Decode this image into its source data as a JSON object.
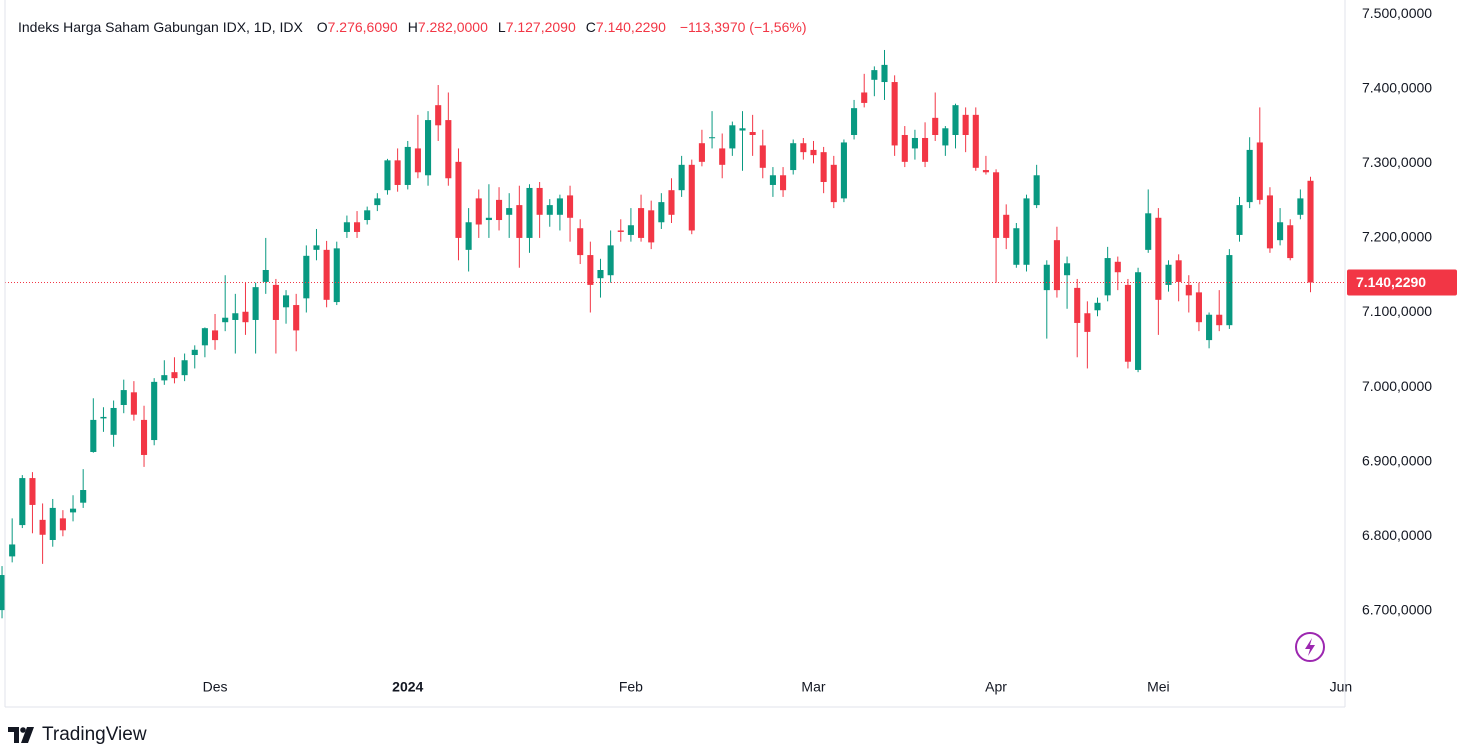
{
  "chart_data": {
    "type": "candlestick",
    "legend": {
      "name": "Indeks Harga Saham Gabungan IDX, 1D, IDX",
      "items": [
        {
          "key": "O",
          "value": "7.276,6090"
        },
        {
          "key": "H",
          "value": "7.282,0000"
        },
        {
          "key": "L",
          "value": "7.127,2090"
        },
        {
          "key": "C",
          "value": "7.140,2290"
        }
      ],
      "change": "−113,3970 (−1,56%)"
    },
    "up_color": "#089981",
    "down_color": "#f23645",
    "grid": true,
    "xlim": [
      -0.2,
      132.4
    ],
    "ylim": [
      6618,
      7519
    ],
    "xticks": [
      {
        "value": 21,
        "label": "Des"
      },
      {
        "value": 40,
        "label": "2024"
      },
      {
        "value": 62,
        "label": "Feb"
      },
      {
        "value": 80,
        "label": "Mar"
      },
      {
        "value": 98,
        "label": "Apr"
      },
      {
        "value": 114,
        "label": "Mei"
      },
      {
        "value": 132,
        "label": "Jun"
      }
    ],
    "yticks": [
      {
        "value": 6700,
        "label": "6.700,0000"
      },
      {
        "value": 6800,
        "label": "6.800,0000"
      },
      {
        "value": 6900,
        "label": "6.900,0000"
      },
      {
        "value": 7000,
        "label": "7.000,0000"
      },
      {
        "value": 7100,
        "label": "7.100,0000"
      },
      {
        "value": 7200,
        "label": "7.200,0000"
      },
      {
        "value": 7300,
        "label": "7.300,0000"
      },
      {
        "value": 7400,
        "label": "7.400,0000"
      },
      {
        "value": 7500,
        "label": "7.500,0000"
      }
    ],
    "price_line": {
      "value": 7140.229,
      "label": "7.140,2290"
    },
    "ohlc": [
      [
        6701,
        6760,
        6690,
        6748
      ],
      [
        6773,
        6824,
        6765,
        6789
      ],
      [
        6815,
        6882,
        6811,
        6878
      ],
      [
        6878,
        6886,
        6804,
        6842
      ],
      [
        6822,
        6844,
        6763,
        6802
      ],
      [
        6795,
        6850,
        6786,
        6838
      ],
      [
        6824,
        6835,
        6800,
        6808
      ],
      [
        6832,
        6855,
        6820,
        6837
      ],
      [
        6845,
        6890,
        6838,
        6862
      ],
      [
        6913,
        6985,
        6912,
        6956
      ],
      [
        6958,
        6973,
        6940,
        6960
      ],
      [
        6936,
        6982,
        6920,
        6972
      ],
      [
        6976,
        7010,
        6965,
        6996
      ],
      [
        6993,
        7008,
        6955,
        6963
      ],
      [
        6956,
        6975,
        6893,
        6909
      ],
      [
        6929,
        7012,
        6922,
        7007
      ],
      [
        7009,
        7036,
        7003,
        7016
      ],
      [
        7020,
        7040,
        7005,
        7012
      ],
      [
        7016,
        7045,
        7008,
        7036
      ],
      [
        7043,
        7056,
        7025,
        7050
      ],
      [
        7056,
        7080,
        7040,
        7079
      ],
      [
        7076,
        7098,
        7050,
        7063
      ],
      [
        7087,
        7150,
        7075,
        7093
      ],
      [
        7090,
        7125,
        7045,
        7099
      ],
      [
        7101,
        7140,
        7070,
        7087
      ],
      [
        7090,
        7140,
        7045,
        7134
      ],
      [
        7141,
        7200,
        7125,
        7157
      ],
      [
        7137,
        7145,
        7045,
        7090
      ],
      [
        7107,
        7130,
        7085,
        7123
      ],
      [
        7110,
        7125,
        7048,
        7076
      ],
      [
        7119,
        7190,
        7100,
        7176
      ],
      [
        7184,
        7212,
        7170,
        7190
      ],
      [
        7184,
        7196,
        7107,
        7117
      ],
      [
        7114,
        7195,
        7110,
        7186
      ],
      [
        7208,
        7230,
        7200,
        7221
      ],
      [
        7221,
        7236,
        7200,
        7208
      ],
      [
        7224,
        7242,
        7218,
        7237
      ],
      [
        7244,
        7260,
        7236,
        7253
      ],
      [
        7264,
        7306,
        7258,
        7304
      ],
      [
        7304,
        7320,
        7262,
        7271
      ],
      [
        7271,
        7330,
        7265,
        7322
      ],
      [
        7320,
        7365,
        7280,
        7288
      ],
      [
        7284,
        7370,
        7270,
        7358
      ],
      [
        7378,
        7405,
        7330,
        7351
      ],
      [
        7358,
        7395,
        7270,
        7280
      ],
      [
        7302,
        7320,
        7170,
        7200
      ],
      [
        7184,
        7240,
        7155,
        7221
      ],
      [
        7253,
        7265,
        7200,
        7218
      ],
      [
        7224,
        7272,
        7200,
        7227
      ],
      [
        7251,
        7268,
        7210,
        7224
      ],
      [
        7231,
        7260,
        7200,
        7240
      ],
      [
        7244,
        7270,
        7160,
        7200
      ],
      [
        7200,
        7272,
        7180,
        7267
      ],
      [
        7267,
        7275,
        7200,
        7231
      ],
      [
        7231,
        7252,
        7215,
        7244
      ],
      [
        7231,
        7258,
        7210,
        7253
      ],
      [
        7257,
        7270,
        7195,
        7227
      ],
      [
        7213,
        7225,
        7165,
        7177
      ],
      [
        7177,
        7195,
        7100,
        7137
      ],
      [
        7146,
        7172,
        7120,
        7157
      ],
      [
        7150,
        7210,
        7140,
        7190
      ],
      [
        7210,
        7225,
        7195,
        7208
      ],
      [
        7204,
        7240,
        7195,
        7217
      ],
      [
        7240,
        7258,
        7195,
        7200
      ],
      [
        7237,
        7250,
        7185,
        7194
      ],
      [
        7221,
        7260,
        7212,
        7248
      ],
      [
        7264,
        7280,
        7220,
        7231
      ],
      [
        7264,
        7310,
        7255,
        7298
      ],
      [
        7298,
        7305,
        7205,
        7210
      ],
      [
        7327,
        7345,
        7296,
        7302
      ],
      [
        7334,
        7370,
        7320,
        7335
      ],
      [
        7320,
        7340,
        7280,
        7298
      ],
      [
        7320,
        7356,
        7310,
        7351
      ],
      [
        7344,
        7370,
        7290,
        7347
      ],
      [
        7342,
        7365,
        7310,
        7338
      ],
      [
        7324,
        7345,
        7280,
        7294
      ],
      [
        7271,
        7295,
        7255,
        7284
      ],
      [
        7284,
        7295,
        7255,
        7264
      ],
      [
        7291,
        7332,
        7285,
        7327
      ],
      [
        7327,
        7334,
        7305,
        7315
      ],
      [
        7318,
        7330,
        7300,
        7311
      ],
      [
        7315,
        7322,
        7260,
        7275
      ],
      [
        7298,
        7310,
        7240,
        7248
      ],
      [
        7253,
        7332,
        7248,
        7328
      ],
      [
        7338,
        7385,
        7332,
        7374
      ],
      [
        7395,
        7420,
        7375,
        7381
      ],
      [
        7412,
        7430,
        7390,
        7425
      ],
      [
        7409,
        7452,
        7385,
        7432
      ],
      [
        7409,
        7418,
        7310,
        7324
      ],
      [
        7338,
        7350,
        7295,
        7302
      ],
      [
        7320,
        7345,
        7305,
        7334
      ],
      [
        7334,
        7355,
        7295,
        7302
      ],
      [
        7361,
        7395,
        7330,
        7338
      ],
      [
        7324,
        7350,
        7310,
        7347
      ],
      [
        7338,
        7380,
        7320,
        7378
      ],
      [
        7365,
        7375,
        7315,
        7338
      ],
      [
        7365,
        7375,
        7290,
        7294
      ],
      [
        7291,
        7310,
        7285,
        7288
      ],
      [
        7288,
        7292,
        7140,
        7200
      ],
      [
        7231,
        7245,
        7185,
        7200
      ],
      [
        7164,
        7220,
        7160,
        7213
      ],
      [
        7164,
        7258,
        7155,
        7253
      ],
      [
        7244,
        7298,
        7240,
        7284
      ],
      [
        7130,
        7170,
        7065,
        7164
      ],
      [
        7197,
        7215,
        7120,
        7130
      ],
      [
        7150,
        7175,
        7105,
        7166
      ],
      [
        7133,
        7145,
        7040,
        7086
      ],
      [
        7099,
        7115,
        7025,
        7074
      ],
      [
        7103,
        7120,
        7095,
        7113
      ],
      [
        7123,
        7188,
        7115,
        7173
      ],
      [
        7168,
        7175,
        7130,
        7154
      ],
      [
        7137,
        7145,
        7025,
        7034
      ],
      [
        7023,
        7160,
        7020,
        7154
      ],
      [
        7184,
        7265,
        7180,
        7233
      ],
      [
        7227,
        7240,
        7070,
        7117
      ],
      [
        7137,
        7170,
        7128,
        7164
      ],
      [
        7170,
        7178,
        7115,
        7141
      ],
      [
        7137,
        7150,
        7100,
        7123
      ],
      [
        7127,
        7140,
        7075,
        7087
      ],
      [
        7063,
        7100,
        7052,
        7097
      ],
      [
        7097,
        7130,
        7075,
        7083
      ],
      [
        7083,
        7185,
        7078,
        7177
      ],
      [
        7204,
        7255,
        7195,
        7244
      ],
      [
        7248,
        7335,
        7240,
        7318
      ],
      [
        7328,
        7375,
        7245,
        7251
      ],
      [
        7257,
        7268,
        7180,
        7186
      ],
      [
        7197,
        7240,
        7190,
        7221
      ],
      [
        7217,
        7225,
        7170,
        7173
      ],
      [
        7231,
        7265,
        7225,
        7253
      ],
      [
        7276.609,
        7282,
        7127.209,
        7140.229
      ]
    ]
  },
  "brand": "TradingView"
}
